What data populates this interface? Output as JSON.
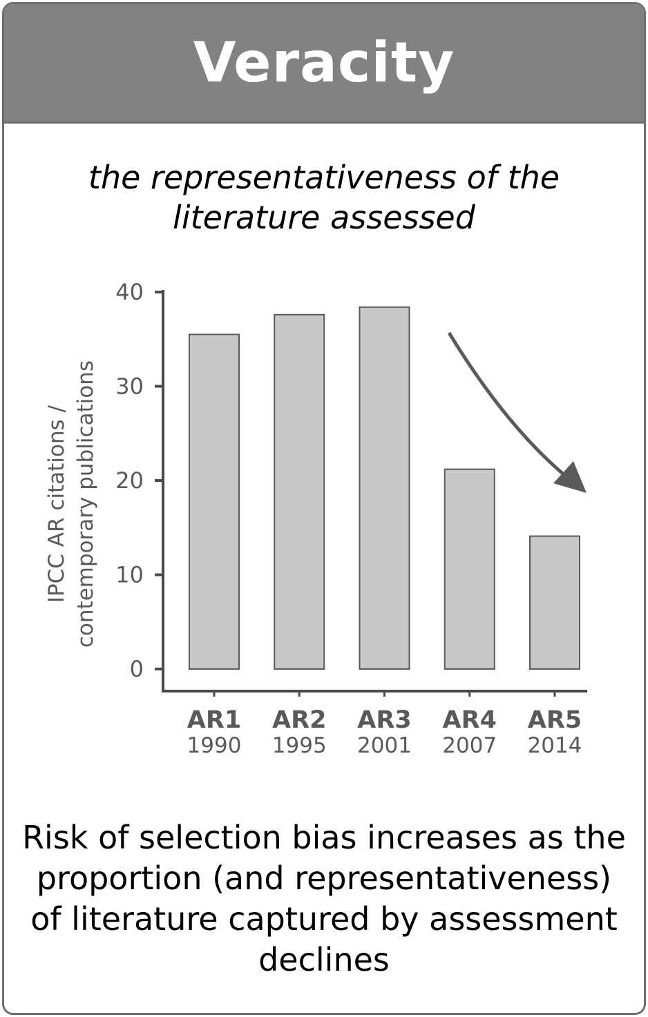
{
  "card": {
    "title": "Veracity",
    "subtitle": "the representativeness of the literature assessed",
    "caption": "Risk of selection bias increases as the proportion (and representativeness) of literature captured by assessment declines"
  },
  "colors": {
    "header_bg": "#828282",
    "border": "#6e6e6e",
    "bar_fill": "#c8c8c8",
    "bar_stroke": "#595959",
    "axis": "#4a4a4a",
    "tick_text": "#595959",
    "arrow": "#5a5a5a"
  },
  "chart_data": {
    "type": "bar",
    "categories": [
      "AR1",
      "AR2",
      "AR3",
      "AR4",
      "AR5"
    ],
    "category_years": [
      "1990",
      "1995",
      "2001",
      "2007",
      "2014"
    ],
    "values": [
      35.5,
      37.6,
      38.4,
      21.2,
      14.1
    ],
    "ylabel_lines": [
      "IPCC AR citations /",
      "contemporary publications"
    ],
    "xlabel": "",
    "title": "",
    "ylim": [
      0,
      40
    ],
    "yticks": [
      0,
      10,
      20,
      30,
      40
    ],
    "grid": false,
    "legend": "none",
    "annotation": "downward trend arrow from AR3 to AR5"
  }
}
